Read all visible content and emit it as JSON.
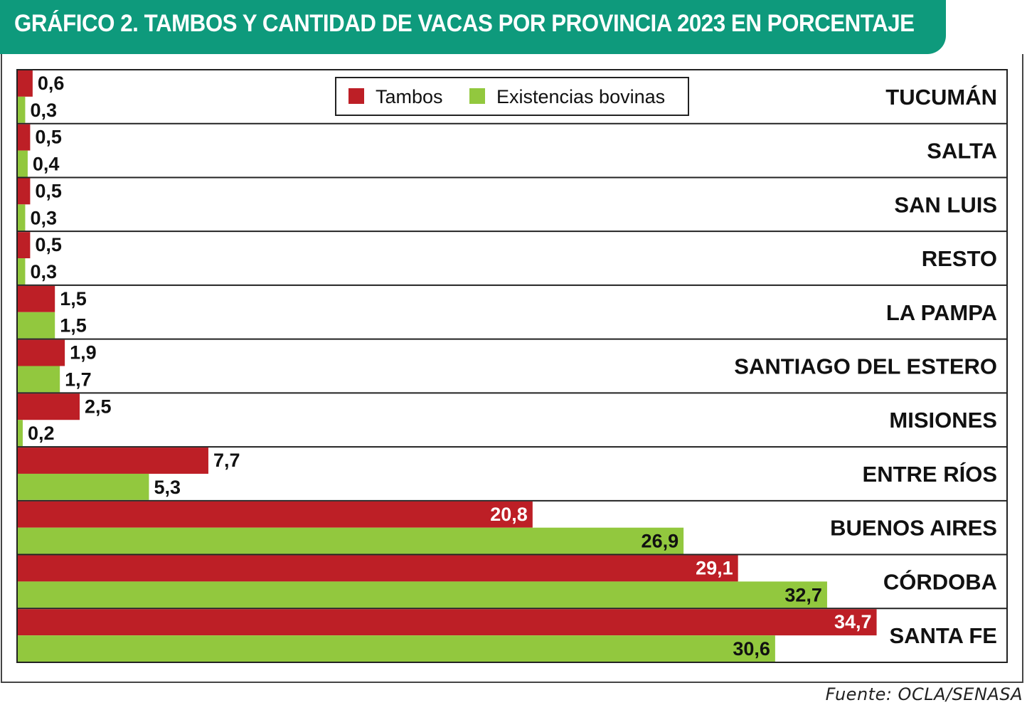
{
  "title": "GRÁFICO 2. TAMBOS Y CANTIDAD DE VACAS POR PROVINCIA 2023 EN PORCENTAJE",
  "source": "Fuente: OCLA/SENASA",
  "colors": {
    "title_bg": "#0e9a7c",
    "tambos": "#bd1f26",
    "existencias": "#92c83e"
  },
  "chart_data": {
    "type": "bar",
    "orientation": "horizontal",
    "categories": [
      "TUCUMÁN",
      "SALTA",
      "SAN LUIS",
      "RESTO",
      "LA PAMPA",
      "SANTIAGO DEL ESTERO",
      "MISIONES",
      "ENTRE RÍOS",
      "BUENOS AIRES",
      "CÓRDOBA",
      "SANTA FE"
    ],
    "series": [
      {
        "name": "Tambos",
        "values": [
          0.6,
          0.5,
          0.5,
          0.5,
          1.5,
          1.9,
          2.5,
          7.7,
          20.8,
          29.1,
          34.7
        ],
        "labels": [
          "0,6",
          "0,5",
          "0,5",
          "0,5",
          "1,5",
          "1,9",
          "2,5",
          "7,7",
          "20,8",
          "29,1",
          "34,7"
        ]
      },
      {
        "name": "Existencias bovinas",
        "values": [
          0.3,
          0.4,
          0.3,
          0.3,
          1.5,
          1.7,
          0.2,
          5.3,
          26.9,
          32.7,
          30.6
        ],
        "labels": [
          "0,3",
          "0,4",
          "0,3",
          "0,3",
          "1,5",
          "1,7",
          "0,2",
          "5,3",
          "26,9",
          "32,7",
          "30,6"
        ]
      }
    ],
    "legend_position": "top-center",
    "xlim": [
      0,
      38
    ]
  }
}
